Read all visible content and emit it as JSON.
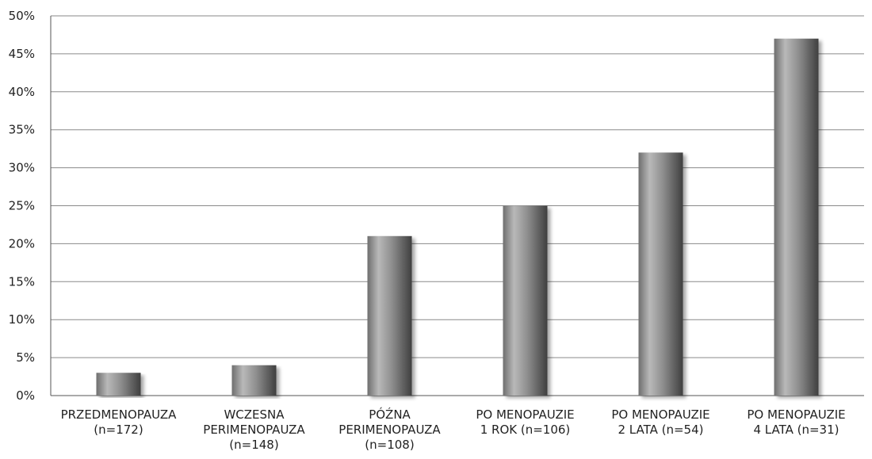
{
  "chart_data": {
    "type": "bar",
    "categories": [
      [
        "PRZEDMENOPAUZA",
        "(n=172)"
      ],
      [
        "WCZESNA",
        "PERIMENOPAUZA",
        "(n=148)"
      ],
      [
        "PÓŹNA",
        "PERIMENOPAUZA",
        "(n=108)"
      ],
      [
        "PO MENOPAUZIE",
        "1 ROK (n=106)"
      ],
      [
        "PO MENOPAUZIE",
        "2 LATA (n=54)"
      ],
      [
        "PO MENOPAUZIE",
        "4 LATA (n=31)"
      ]
    ],
    "values": [
      3,
      4,
      21,
      25,
      32,
      47
    ],
    "yticks": [
      "0%",
      "5%",
      "10%",
      "15%",
      "20%",
      "25%",
      "30%",
      "35%",
      "40%",
      "45%",
      "50%"
    ],
    "ylim": [
      0,
      50
    ],
    "grid": true,
    "title": "",
    "xlabel": "",
    "ylabel": "",
    "bar_color": "#8c8c8c"
  }
}
